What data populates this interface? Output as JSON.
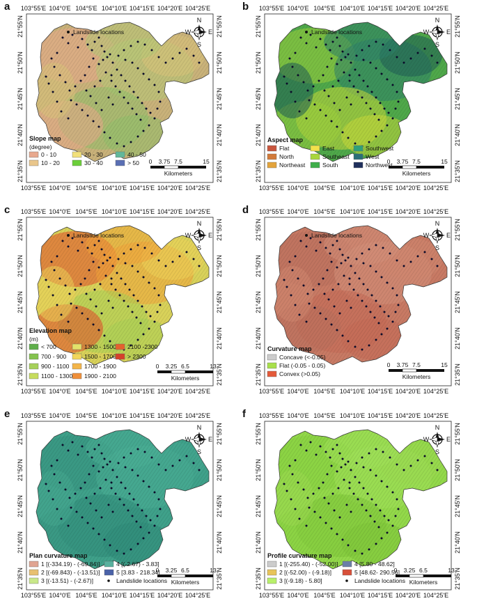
{
  "panels": [
    {
      "label": "a",
      "title": "Slope map",
      "subtitle": "(degree)",
      "fill": "#c9b27a",
      "tint": [
        "#e7a98b",
        "#b5c876",
        "#8fbf6a",
        "#d9c37a"
      ],
      "legend_cols": 3,
      "legend": [
        {
          "text": "0 - 10",
          "color": "#e8a88e"
        },
        {
          "text": "10 - 20",
          "color": "#e9c68b"
        },
        {
          "text": "20 - 30",
          "color": "#f2e07a"
        },
        {
          "text": "30 - 40",
          "color": "#6ccf3a"
        },
        {
          "text": "40 - 50",
          "color": "#62b89a"
        },
        {
          "text": "> 50",
          "color": "#5a6fb4"
        }
      ],
      "scale": {
        "ticks": [
          "0",
          "3.75",
          "7.5",
          "15"
        ],
        "unit": "Kilometers"
      },
      "show_top_legend": true
    },
    {
      "label": "b",
      "title": "Aspect map",
      "subtitle": "",
      "fill": "#4fa84a",
      "tint": [
        "#9fd03d",
        "#2e7f6a",
        "#c8d83b",
        "#1f5c55"
      ],
      "legend_cols": 3,
      "legend": [
        {
          "text": "Flat",
          "color": "#c8553d"
        },
        {
          "text": "North",
          "color": "#d27a3a"
        },
        {
          "text": "Northeast",
          "color": "#e3a43c"
        },
        {
          "text": "East",
          "color": "#f2e14a"
        },
        {
          "text": "Southeast",
          "color": "#a9d63d"
        },
        {
          "text": "South",
          "color": "#3fae4a"
        },
        {
          "text": "Southwest",
          "color": "#2fa07a"
        },
        {
          "text": "West",
          "color": "#2a6f78"
        },
        {
          "text": "Northwest",
          "color": "#1f2f5c"
        }
      ],
      "scale": {
        "ticks": [
          "0",
          "3.75",
          "7.5",
          "15"
        ],
        "unit": "Kilometers"
      },
      "show_top_legend": true
    },
    {
      "label": "c",
      "title": "Elevation map",
      "subtitle": "(m)",
      "fill": "#d9d25a",
      "tint": [
        "#e24a2a",
        "#f0a33a",
        "#a7cf55",
        "#ecd25a"
      ],
      "legend_cols": 3,
      "legend": [
        {
          "text": "< 700",
          "color": "#5fae4a"
        },
        {
          "text": "700 - 900",
          "color": "#84c24e"
        },
        {
          "text": "900 - 1100",
          "color": "#a6d05a"
        },
        {
          "text": "1100 - 1300",
          "color": "#c6dc5e"
        },
        {
          "text": "1300 - 1500",
          "color": "#e3e26a"
        },
        {
          "text": "1500 - 1700",
          "color": "#f2d65a"
        },
        {
          "text": "1700 - 1900",
          "color": "#f3b54a"
        },
        {
          "text": "1900 - 2100",
          "color": "#ef8f3a"
        },
        {
          "text": "2100 -2300",
          "color": "#e4622d"
        },
        {
          "text": "> 2300",
          "color": "#d6402a"
        }
      ],
      "scale": {
        "ticks": [
          "0",
          "3.25",
          "6.5",
          "13"
        ],
        "unit": "Kilometers"
      },
      "show_top_legend": true
    },
    {
      "label": "d",
      "title": "Curvature map",
      "subtitle": "",
      "fill": "#c87a64",
      "tint": [
        "#b9705c",
        "#d4907a",
        "#c46a55",
        "#cf8670"
      ],
      "legend_cols": 1,
      "legend": [
        {
          "text": "Concave (<-0.05)",
          "color": "#cccccc"
        },
        {
          "text": "Flat (-0.05 - 0.05)",
          "color": "#a8e04a"
        },
        {
          "text": "Convex (>0.05)",
          "color": "#e45a3a"
        }
      ],
      "scale": {
        "ticks": [
          "0",
          "3.75",
          "7.5",
          "15"
        ],
        "unit": "Kilometers"
      },
      "show_top_legend": true
    },
    {
      "label": "e",
      "title": "Plan curvature map",
      "subtitle": "",
      "fill": "#3fa18a",
      "tint": [
        "#379380",
        "#4aae95",
        "#2f8a78",
        "#46a890"
      ],
      "legend_cols": 2,
      "legend": [
        {
          "text": "1 [(-334.19) - (-69.84)]",
          "color": "#e0a491"
        },
        {
          "text": "2 [(-69.843) - (-13.51)]",
          "color": "#e8c070"
        },
        {
          "text": "3 [(-13.51) - (-2.67)]",
          "color": "#c9e88a"
        },
        {
          "text": "4 [(-2.67) - 3.83]",
          "color": "#58b19e"
        },
        {
          "text": "5 [3.83 - 218.34]",
          "color": "#4a62a8"
        }
      ],
      "dot_legend": "Landslide locations",
      "scale": {
        "ticks": [
          "0",
          "3.25",
          "6.5",
          "13"
        ],
        "unit": "Kilometers"
      },
      "show_top_legend": false
    },
    {
      "label": "f",
      "title": "Profile curvature map",
      "subtitle": "",
      "fill": "#93d94a",
      "tint": [
        "#86cf3f",
        "#a0e05a",
        "#7ec439",
        "#9ad851"
      ],
      "legend_cols": 2,
      "legend": [
        {
          "text": "1 [(-255.40) - (-52.00)]",
          "color": "#cccccc"
        },
        {
          "text": "2 [(-52.00) - (-9.18)]",
          "color": "#e8c45a"
        },
        {
          "text": "3 [(-9.18) - 5.80]",
          "color": "#b8f06a"
        },
        {
          "text": "4 [5.80 - 48.62]",
          "color": "#6b7fa8"
        },
        {
          "text": "5 [48.62- 290.56]",
          "color": "#d8503a"
        }
      ],
      "dot_legend": "Landslide locations",
      "scale": {
        "ticks": [
          "0",
          "3.25",
          "6.5",
          "13"
        ],
        "unit": "Kilometers"
      },
      "show_top_legend": false
    }
  ],
  "axes": {
    "lon_ticks": [
      "103°55'E",
      "104°0'E",
      "104°5'E",
      "104°10'E",
      "104°15'E",
      "104°20'E",
      "104°25'E"
    ],
    "lat_ticks": [
      "21°55'N",
      "21°50'N",
      "21°45'N",
      "21°40'N",
      "21°35'N"
    ]
  },
  "north_arrow": {
    "n": "N",
    "s": "S",
    "e": "E",
    "w": "W"
  },
  "landslide_legend": "Landslide locations"
}
